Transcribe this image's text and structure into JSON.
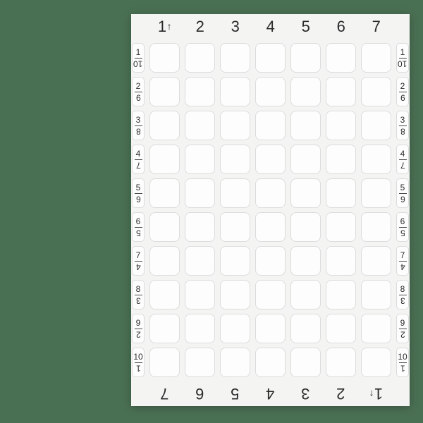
{
  "colors": {
    "background_green": "#4a7053",
    "panel_bg": "#f4f4f3",
    "cell_bg": "#fdfdfd",
    "cell_border": "#dcdcdc",
    "text": "#2d2d2d",
    "fraction_bar": "#474747"
  },
  "board": {
    "direction_arrow": "↑",
    "arrow_on_column": "1",
    "columns": [
      "1",
      "2",
      "3",
      "4",
      "5",
      "6",
      "7"
    ],
    "footer_columns_rotated": true,
    "rows": [
      {
        "num": "1",
        "den": "10"
      },
      {
        "num": "2",
        "den": "9"
      },
      {
        "num": "3",
        "den": "8"
      },
      {
        "num": "4",
        "den": "7"
      },
      {
        "num": "5",
        "den": "6"
      },
      {
        "num": "6",
        "den": "5"
      },
      {
        "num": "7",
        "den": "4"
      },
      {
        "num": "8",
        "den": "3"
      },
      {
        "num": "9",
        "den": "2"
      },
      {
        "num": "10",
        "den": "1"
      }
    ],
    "row_denominator_rotated": true,
    "grid": {
      "cols": 7,
      "rows": 10,
      "cells_empty": true
    }
  }
}
